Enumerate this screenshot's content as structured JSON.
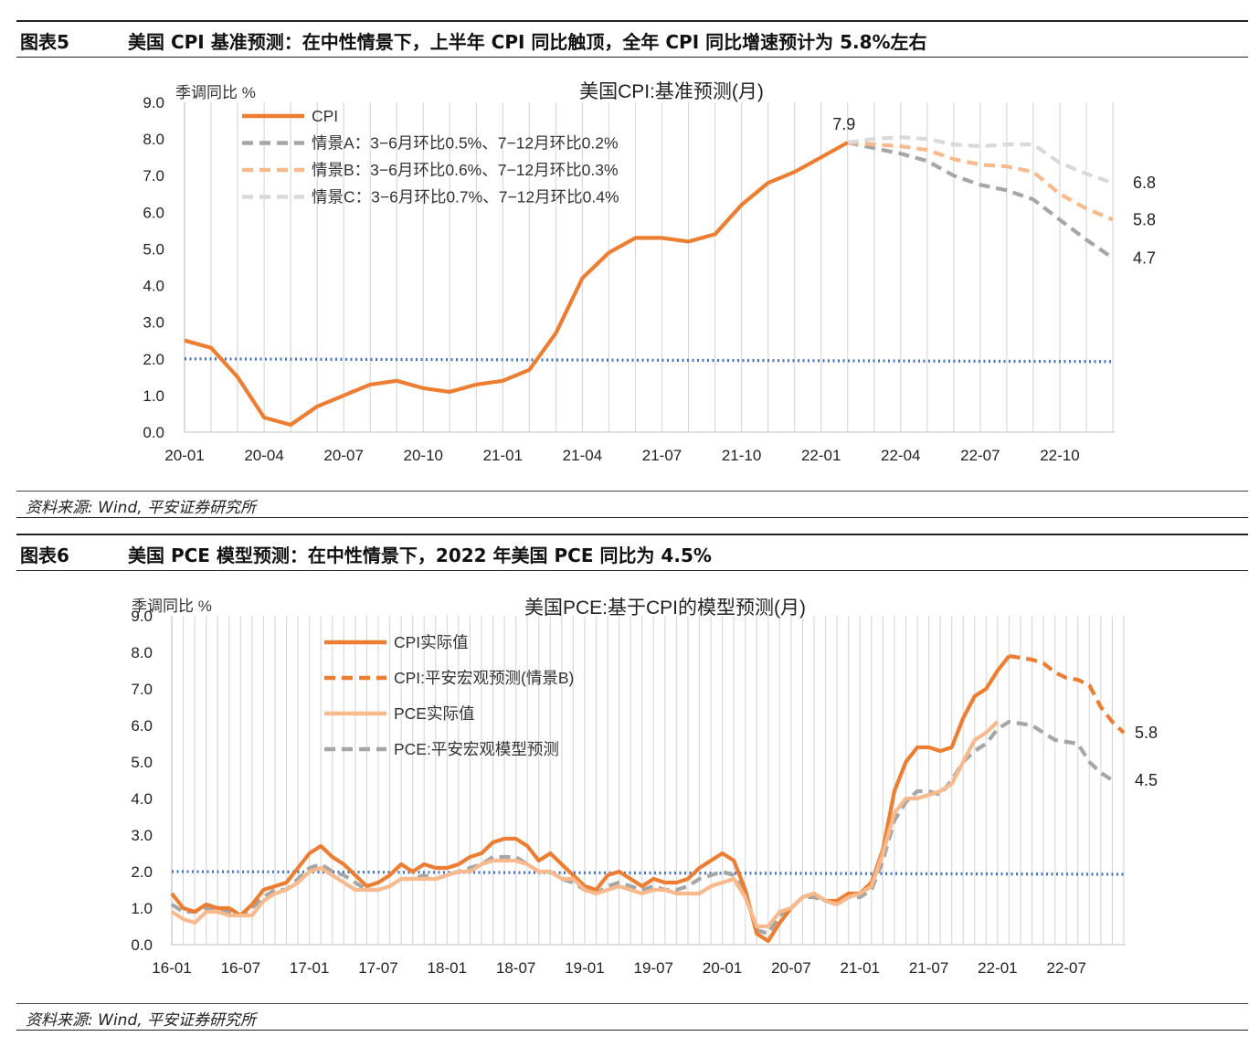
{
  "fig5": {
    "figure_label": "图表5",
    "caption": "美国 CPI 基准预测：在中性情景下，上半年 CPI 同比触顶，全年 CPI 同比增速预计为 5.8%左右",
    "source": "资料来源: Wind, 平安证券研究所"
  },
  "fig6": {
    "figure_label": "图表6",
    "caption": "美国 PCE 模型预测：在中性情景下，2022 年美国 PCE 同比为 4.5%",
    "source": "资料来源: Wind, 平安证券研究所"
  },
  "chart_data": [
    {
      "type": "line",
      "title": "美国CPI:基准预测(月)",
      "ylabel": "季调同比 %",
      "ylim": [
        0,
        9
      ],
      "yticks": [
        "0.0",
        "1.0",
        "2.0",
        "3.0",
        "4.0",
        "5.0",
        "6.0",
        "7.0",
        "8.0",
        "9.0"
      ],
      "xticks": [
        "20-01",
        "20-04",
        "20-07",
        "20-10",
        "21-01",
        "21-04",
        "21-07",
        "21-10",
        "22-01",
        "22-04",
        "22-07",
        "22-10"
      ],
      "x_start": "2020-01",
      "x_end": "2022-12",
      "grid": "vertical",
      "legend": "top-left",
      "reference_line": 2.0,
      "series": [
        {
          "name": "CPI",
          "style": "solid",
          "color": "#ed7d31",
          "x": [
            "2020-01",
            "2020-02",
            "2020-03",
            "2020-04",
            "2020-05",
            "2020-06",
            "2020-07",
            "2020-08",
            "2020-09",
            "2020-10",
            "2020-11",
            "2020-12",
            "2021-01",
            "2021-02",
            "2021-03",
            "2021-04",
            "2021-05",
            "2021-06",
            "2021-07",
            "2021-08",
            "2021-09",
            "2021-10",
            "2021-11",
            "2021-12",
            "2022-01",
            "2022-02"
          ],
          "values": [
            2.5,
            2.3,
            1.5,
            0.4,
            0.2,
            0.7,
            1.0,
            1.3,
            1.4,
            1.2,
            1.1,
            1.3,
            1.4,
            1.7,
            2.7,
            4.2,
            4.9,
            5.3,
            5.3,
            5.2,
            5.4,
            6.2,
            6.8,
            7.1,
            7.5,
            7.9
          ]
        },
        {
          "name": "情景A：3−6月环比0.5%、7−12月环比0.2%",
          "style": "dashed",
          "color": "#a6a6a6",
          "x": [
            "2022-02",
            "2022-03",
            "2022-04",
            "2022-05",
            "2022-06",
            "2022-07",
            "2022-08",
            "2022-09",
            "2022-10",
            "2022-11",
            "2022-12"
          ],
          "values": [
            7.9,
            7.75,
            7.6,
            7.4,
            7.0,
            6.75,
            6.6,
            6.35,
            5.8,
            5.25,
            4.75
          ]
        },
        {
          "name": "情景B：3−6月环比0.6%、7−12月环比0.3%",
          "style": "dashed",
          "color": "#f8b98c",
          "x": [
            "2022-02",
            "2022-03",
            "2022-04",
            "2022-05",
            "2022-06",
            "2022-07",
            "2022-08",
            "2022-09",
            "2022-10",
            "2022-11",
            "2022-12"
          ],
          "values": [
            7.9,
            7.85,
            7.8,
            7.7,
            7.45,
            7.3,
            7.25,
            7.1,
            6.5,
            6.1,
            5.8
          ]
        },
        {
          "name": "情景C：3−6月环比0.7%、7−12月环比0.4%",
          "style": "dashed",
          "color": "#d9d9d9",
          "x": [
            "2022-02",
            "2022-03",
            "2022-04",
            "2022-05",
            "2022-06",
            "2022-07",
            "2022-08",
            "2022-09",
            "2022-10",
            "2022-11",
            "2022-12"
          ],
          "values": [
            7.9,
            8.0,
            8.05,
            8.0,
            7.85,
            7.8,
            7.85,
            7.85,
            7.35,
            7.05,
            6.8
          ]
        }
      ],
      "annotations": [
        {
          "text": "7.9",
          "x": "2022-02",
          "y": 7.9
        },
        {
          "text": "6.8",
          "x": "2022-12",
          "y": 6.8
        },
        {
          "text": "5.8",
          "x": "2022-12",
          "y": 5.8
        },
        {
          "text": "4.7",
          "x": "2022-12",
          "y": 4.75
        }
      ]
    },
    {
      "type": "line",
      "title": "美国PCE:基于CPI的模型预测(月)",
      "ylabel": "季调同比 %",
      "ylim": [
        0,
        9
      ],
      "yticks": [
        "0.0",
        "1.0",
        "2.0",
        "3.0",
        "4.0",
        "5.0",
        "6.0",
        "7.0",
        "8.0",
        "9.0"
      ],
      "xticks": [
        "16-01",
        "16-07",
        "17-01",
        "17-07",
        "18-01",
        "18-07",
        "19-01",
        "19-07",
        "20-01",
        "20-07",
        "21-01",
        "21-07",
        "22-01",
        "22-07"
      ],
      "x_start": "2016-01",
      "x_end": "2022-12",
      "grid": "vertical",
      "legend": "top-left",
      "reference_line": 2.0,
      "series": [
        {
          "name": "CPI实际值",
          "style": "solid",
          "color": "#ed7d31",
          "x_start": "2016-01",
          "values": [
            1.4,
            1.0,
            0.9,
            1.1,
            1.0,
            1.0,
            0.8,
            1.1,
            1.5,
            1.6,
            1.7,
            2.1,
            2.5,
            2.7,
            2.4,
            2.2,
            1.9,
            1.6,
            1.7,
            1.9,
            2.2,
            2.0,
            2.2,
            2.1,
            2.1,
            2.2,
            2.4,
            2.5,
            2.8,
            2.9,
            2.9,
            2.7,
            2.3,
            2.5,
            2.2,
            1.9,
            1.6,
            1.5,
            1.9,
            2.0,
            1.8,
            1.6,
            1.8,
            1.7,
            1.7,
            1.8,
            2.1,
            2.3,
            2.5,
            2.3,
            1.5,
            0.3,
            0.1,
            0.6,
            1.0,
            1.3,
            1.4,
            1.2,
            1.2,
            1.4,
            1.4,
            1.7,
            2.6,
            4.2,
            5.0,
            5.4,
            5.4,
            5.3,
            5.4,
            6.2,
            6.8,
            7.0,
            7.5,
            7.9
          ]
        },
        {
          "name": "CPI:平安宏观预测(情景B)",
          "style": "dashed",
          "color": "#ed7d31",
          "x_start": "2022-02",
          "values": [
            7.9,
            7.85,
            7.8,
            7.7,
            7.45,
            7.3,
            7.25,
            7.1,
            6.5,
            6.1,
            5.8
          ]
        },
        {
          "name": "PCE实际值",
          "style": "solid",
          "color": "#f8b98c",
          "x_start": "2016-01",
          "values": [
            0.9,
            0.7,
            0.6,
            0.9,
            0.9,
            0.8,
            0.8,
            0.8,
            1.2,
            1.4,
            1.5,
            1.7,
            2.0,
            2.1,
            1.9,
            1.7,
            1.5,
            1.5,
            1.5,
            1.6,
            1.8,
            1.8,
            1.8,
            1.8,
            1.9,
            2.0,
            2.0,
            2.2,
            2.3,
            2.3,
            2.3,
            2.2,
            2.0,
            2.0,
            1.8,
            1.8,
            1.5,
            1.4,
            1.5,
            1.6,
            1.5,
            1.4,
            1.5,
            1.5,
            1.4,
            1.4,
            1.4,
            1.6,
            1.7,
            1.8,
            1.3,
            0.5,
            0.5,
            0.9,
            1.0,
            1.3,
            1.4,
            1.2,
            1.1,
            1.3,
            1.4,
            1.6,
            2.5,
            3.6,
            4.0,
            4.0,
            4.1,
            4.2,
            4.4,
            5.0,
            5.6,
            5.8,
            6.1
          ]
        },
        {
          "name": "PCE:平安宏观模型预测",
          "style": "dashed",
          "color": "#a6a6a6",
          "x_start": "2016-01",
          "values": [
            1.1,
            0.9,
            0.9,
            1.0,
            1.0,
            0.9,
            0.8,
            1.0,
            1.3,
            1.5,
            1.5,
            1.8,
            2.1,
            2.2,
            2.0,
            1.9,
            1.7,
            1.5,
            1.5,
            1.6,
            1.8,
            1.8,
            1.9,
            1.8,
            1.9,
            2.0,
            2.1,
            2.2,
            2.4,
            2.4,
            2.4,
            2.2,
            2.0,
            2.0,
            1.8,
            1.7,
            1.5,
            1.4,
            1.6,
            1.7,
            1.6,
            1.5,
            1.6,
            1.5,
            1.5,
            1.6,
            1.8,
            1.9,
            2.0,
            1.9,
            1.4,
            0.4,
            0.3,
            0.8,
            1.0,
            1.3,
            1.3,
            1.2,
            1.1,
            1.3,
            1.3,
            1.5,
            2.3,
            3.4,
            3.9,
            4.2,
            4.2,
            4.1,
            4.5,
            5.0,
            5.3,
            5.5,
            5.9,
            6.1,
            6.05,
            6.0,
            5.8,
            5.6,
            5.55,
            5.5,
            5.0,
            4.7,
            4.5
          ]
        }
      ],
      "annotations": [
        {
          "text": "5.8",
          "x": "2022-12",
          "y": 5.8
        },
        {
          "text": "4.5",
          "x": "2022-12",
          "y": 4.5
        }
      ]
    }
  ]
}
